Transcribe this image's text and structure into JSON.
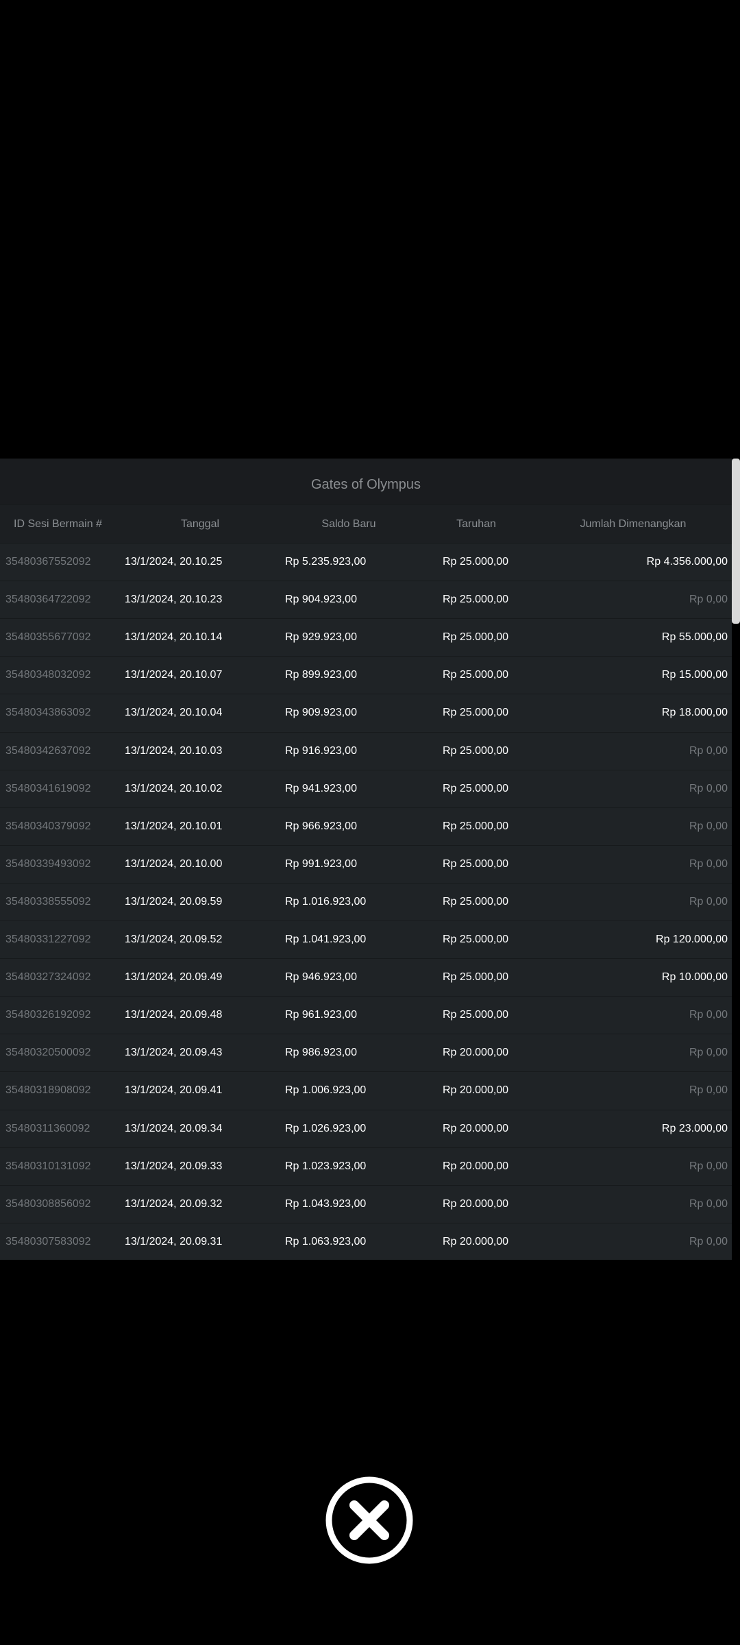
{
  "title": "Gates of Olympus",
  "table": {
    "headers": [
      "ID Sesi Bermain #",
      "Tanggal",
      "Saldo Baru",
      "Taruhan",
      "Jumlah Dimenangkan"
    ],
    "rows": [
      [
        "35480367552092",
        "13/1/2024, 20.10.25",
        "Rp 5.235.923,00",
        "Rp 25.000,00",
        "Rp 4.356.000,00"
      ],
      [
        "35480364722092",
        "13/1/2024, 20.10.23",
        "Rp 904.923,00",
        "Rp 25.000,00",
        "Rp 0,00"
      ],
      [
        "35480355677092",
        "13/1/2024, 20.10.14",
        "Rp 929.923,00",
        "Rp 25.000,00",
        "Rp 55.000,00"
      ],
      [
        "35480348032092",
        "13/1/2024, 20.10.07",
        "Rp 899.923,00",
        "Rp 25.000,00",
        "Rp 15.000,00"
      ],
      [
        "35480343863092",
        "13/1/2024, 20.10.04",
        "Rp 909.923,00",
        "Rp 25.000,00",
        "Rp 18.000,00"
      ],
      [
        "35480342637092",
        "13/1/2024, 20.10.03",
        "Rp 916.923,00",
        "Rp 25.000,00",
        "Rp 0,00"
      ],
      [
        "35480341619092",
        "13/1/2024, 20.10.02",
        "Rp 941.923,00",
        "Rp 25.000,00",
        "Rp 0,00"
      ],
      [
        "35480340379092",
        "13/1/2024, 20.10.01",
        "Rp 966.923,00",
        "Rp 25.000,00",
        "Rp 0,00"
      ],
      [
        "35480339493092",
        "13/1/2024, 20.10.00",
        "Rp 991.923,00",
        "Rp 25.000,00",
        "Rp 0,00"
      ],
      [
        "35480338555092",
        "13/1/2024, 20.09.59",
        "Rp 1.016.923,00",
        "Rp 25.000,00",
        "Rp 0,00"
      ],
      [
        "35480331227092",
        "13/1/2024, 20.09.52",
        "Rp 1.041.923,00",
        "Rp 25.000,00",
        "Rp 120.000,00"
      ],
      [
        "35480327324092",
        "13/1/2024, 20.09.49",
        "Rp 946.923,00",
        "Rp 25.000,00",
        "Rp 10.000,00"
      ],
      [
        "35480326192092",
        "13/1/2024, 20.09.48",
        "Rp 961.923,00",
        "Rp 25.000,00",
        "Rp 0,00"
      ],
      [
        "35480320500092",
        "13/1/2024, 20.09.43",
        "Rp 986.923,00",
        "Rp 20.000,00",
        "Rp 0,00"
      ],
      [
        "35480318908092",
        "13/1/2024, 20.09.41",
        "Rp 1.006.923,00",
        "Rp 20.000,00",
        "Rp 0,00"
      ],
      [
        "35480311360092",
        "13/1/2024, 20.09.34",
        "Rp 1.026.923,00",
        "Rp 20.000,00",
        "Rp 23.000,00"
      ],
      [
        "35480310131092",
        "13/1/2024, 20.09.33",
        "Rp 1.023.923,00",
        "Rp 20.000,00",
        "Rp 0,00"
      ],
      [
        "35480308856092",
        "13/1/2024, 20.09.32",
        "Rp 1.043.923,00",
        "Rp 20.000,00",
        "Rp 0,00"
      ],
      [
        "35480307583092",
        "13/1/2024, 20.09.31",
        "Rp 1.063.923,00",
        "Rp 20.000,00",
        "Rp 0,00"
      ]
    ]
  }
}
